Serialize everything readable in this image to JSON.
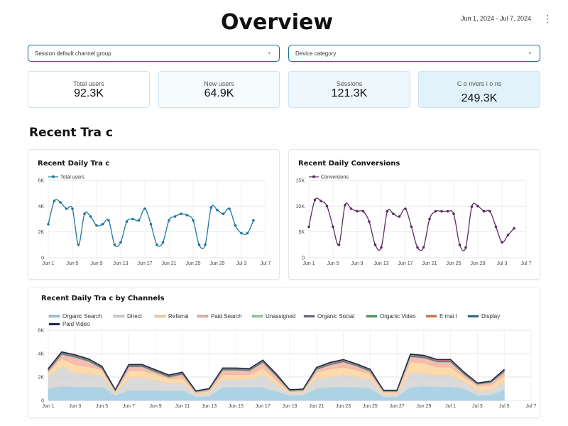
{
  "header": {
    "title": "Overview",
    "date_range": "Jun 1, 2024 - Jul 7, 2024",
    "menu_icon": "kebab-menu-icon"
  },
  "filters": [
    {
      "label": "Session default channel group",
      "icon": "chevron-down-icon"
    },
    {
      "label": "Device category",
      "icon": "chevron-down-icon"
    }
  ],
  "kpis": [
    {
      "label": "Total users",
      "value": "92.3K",
      "bg": "#ffffff"
    },
    {
      "label": "New users",
      "value": "64.9K",
      "bg": "#f6fbfe"
    },
    {
      "label": "Sessions",
      "value": "121.3K",
      "bg": "#eef7fc"
    },
    {
      "label": "C o nvers i o ns",
      "value": "249.3K",
      "bg": "#e2f2fb"
    }
  ],
  "section_title": "Recent Tra c",
  "chart_data": [
    {
      "type": "line",
      "title": "Recent Daily Tra c",
      "x_ticks": [
        "Jun 1",
        "Jun 5",
        "Jun 9",
        "Jun 13",
        "Jun 17",
        "Jun 21",
        "Jun 25",
        "Jun 29",
        "Jul 3",
        "Jul 7"
      ],
      "y_ticks": [
        "0",
        "2K",
        "4K",
        "6K"
      ],
      "ylim": [
        0,
        6000
      ],
      "xlim": [
        0,
        36
      ],
      "grid": true,
      "legend_position": "top-left",
      "color": "#1f77a0",
      "series": [
        {
          "name": "Total users",
          "values": [
            2600,
            4400,
            4300,
            3800,
            3800,
            1000,
            3400,
            3200,
            2500,
            2600,
            2900,
            1000,
            1200,
            2800,
            3000,
            2900,
            3800,
            2600,
            1000,
            1200,
            2900,
            3200,
            3400,
            3300,
            2900,
            1000,
            1000,
            3900,
            3700,
            3400,
            3800,
            2500,
            1900,
            1900,
            2900
          ]
        }
      ]
    },
    {
      "type": "line",
      "title": "Recent Daily Conversions",
      "x_ticks": [
        "Jun 1",
        "Jun 5",
        "Jun 9",
        "Jun 13",
        "Jun 17",
        "Jun 21",
        "Jun 25",
        "Jun 29",
        "Jul 3",
        "Jul 7"
      ],
      "y_ticks": [
        "0",
        "5K",
        "10K",
        "15K"
      ],
      "ylim": [
        0,
        15000
      ],
      "xlim": [
        0,
        36
      ],
      "grid": true,
      "legend_position": "top-left",
      "color": "#5c2d62",
      "series": [
        {
          "name": "Conversions",
          "values": [
            6000,
            11200,
            11000,
            10000,
            6000,
            2500,
            10200,
            9500,
            9000,
            9000,
            7000,
            2500,
            2000,
            9000,
            8500,
            8000,
            9500,
            6000,
            2000,
            2000,
            7500,
            9000,
            9000,
            9000,
            8500,
            2500,
            2000,
            9900,
            10000,
            9000,
            9000,
            6000,
            3000,
            4400,
            5700
          ]
        }
      ]
    },
    {
      "type": "area",
      "title": "Recent Daily Tra c by Channels",
      "stacked": true,
      "x_ticks": [
        "Jun 1",
        "Jun 3",
        "Jun 5",
        "Jun 7",
        "Jun 9",
        "Jun 11",
        "Jun 13",
        "Jun 15",
        "Jun 17",
        "Jun 19",
        "Jun 21",
        "Jun 23",
        "Jun 25",
        "Jun 27",
        "Jun 29",
        "Jul 1",
        "Jul 3",
        "Jul 5",
        "Jul 7"
      ],
      "y_ticks": [
        "0",
        "2K",
        "4K",
        "6K"
      ],
      "ylim": [
        0,
        6000
      ],
      "xlim": [
        0,
        36
      ],
      "grid": true,
      "legend_position": "top",
      "series": [
        {
          "name": "Organic Search",
          "color": "#9ecae1",
          "values": [
            1000,
            1200,
            1150,
            1150,
            1150,
            400,
            850,
            850,
            850,
            800,
            850,
            300,
            350,
            1100,
            1100,
            1100,
            1100,
            750,
            400,
            450,
            1000,
            1100,
            1150,
            1100,
            1000,
            300,
            300,
            1100,
            1200,
            1150,
            1150,
            1000,
            400,
            450,
            900
          ]
        },
        {
          "name": "Direct",
          "color": "#d3d3d3",
          "values": [
            1100,
            1700,
            1200,
            1100,
            1000,
            250,
            1100,
            1100,
            900,
            650,
            650,
            250,
            300,
            700,
            700,
            700,
            1100,
            600,
            250,
            250,
            900,
            900,
            1000,
            900,
            850,
            250,
            250,
            1300,
            1100,
            1000,
            1000,
            600,
            450,
            450,
            700
          ]
        },
        {
          "name": "Referral",
          "color": "#fbd49e",
          "values": [
            300,
            700,
            700,
            650,
            450,
            100,
            600,
            600,
            500,
            400,
            400,
            100,
            150,
            400,
            400,
            400,
            600,
            400,
            100,
            100,
            500,
            700,
            700,
            600,
            400,
            150,
            150,
            900,
            900,
            700,
            700,
            400,
            400,
            400,
            500
          ]
        },
        {
          "name": "Paid Search",
          "color": "#f5b0a3",
          "values": [
            100,
            300,
            600,
            400,
            100,
            50,
            300,
            300,
            150,
            100,
            300,
            50,
            100,
            350,
            350,
            300,
            400,
            300,
            50,
            50,
            200,
            300,
            400,
            300,
            200,
            50,
            50,
            400,
            400,
            400,
            400,
            200,
            100,
            200,
            300
          ]
        },
        {
          "name": "Unassigned",
          "color": "#8fd19e",
          "values": [
            50,
            50,
            50,
            50,
            50,
            50,
            50,
            50,
            50,
            50,
            50,
            50,
            50,
            50,
            50,
            50,
            50,
            50,
            50,
            50,
            50,
            50,
            50,
            50,
            50,
            50,
            50,
            50,
            50,
            50,
            50,
            50,
            50,
            50,
            50
          ]
        },
        {
          "name": "Organic Social",
          "color": "#6a6a80",
          "values": [
            80,
            100,
            100,
            100,
            80,
            30,
            80,
            80,
            80,
            80,
            80,
            30,
            30,
            80,
            80,
            80,
            100,
            80,
            30,
            30,
            80,
            100,
            100,
            80,
            80,
            30,
            30,
            100,
            100,
            100,
            100,
            80,
            50,
            50,
            100
          ]
        },
        {
          "name": "Organic Video",
          "color": "#4c9a5e",
          "values": [
            20,
            20,
            20,
            20,
            20,
            10,
            20,
            20,
            20,
            20,
            20,
            10,
            10,
            20,
            20,
            20,
            20,
            20,
            10,
            10,
            20,
            20,
            20,
            20,
            20,
            10,
            10,
            20,
            20,
            20,
            20,
            20,
            10,
            10,
            20
          ]
        },
        {
          "name": "E mai l",
          "color": "#e8704a",
          "values": [
            30,
            40,
            40,
            40,
            30,
            10,
            30,
            30,
            30,
            30,
            30,
            10,
            10,
            30,
            30,
            30,
            40,
            30,
            10,
            10,
            30,
            40,
            40,
            30,
            30,
            10,
            10,
            40,
            40,
            40,
            40,
            30,
            20,
            20,
            30
          ]
        },
        {
          "name": "Display",
          "color": "#2f6f8f",
          "values": [
            20,
            20,
            20,
            20,
            20,
            10,
            20,
            20,
            20,
            20,
            20,
            10,
            10,
            20,
            20,
            20,
            20,
            20,
            10,
            10,
            20,
            20,
            20,
            20,
            20,
            10,
            10,
            20,
            20,
            20,
            20,
            20,
            10,
            10,
            20
          ]
        },
        {
          "name": "Paid Video",
          "color": "#1e2650",
          "values": [
            20,
            20,
            20,
            20,
            20,
            10,
            20,
            20,
            20,
            20,
            20,
            10,
            10,
            20,
            20,
            20,
            20,
            20,
            10,
            10,
            20,
            20,
            20,
            20,
            20,
            10,
            10,
            20,
            20,
            20,
            20,
            20,
            10,
            10,
            20
          ]
        }
      ]
    }
  ]
}
